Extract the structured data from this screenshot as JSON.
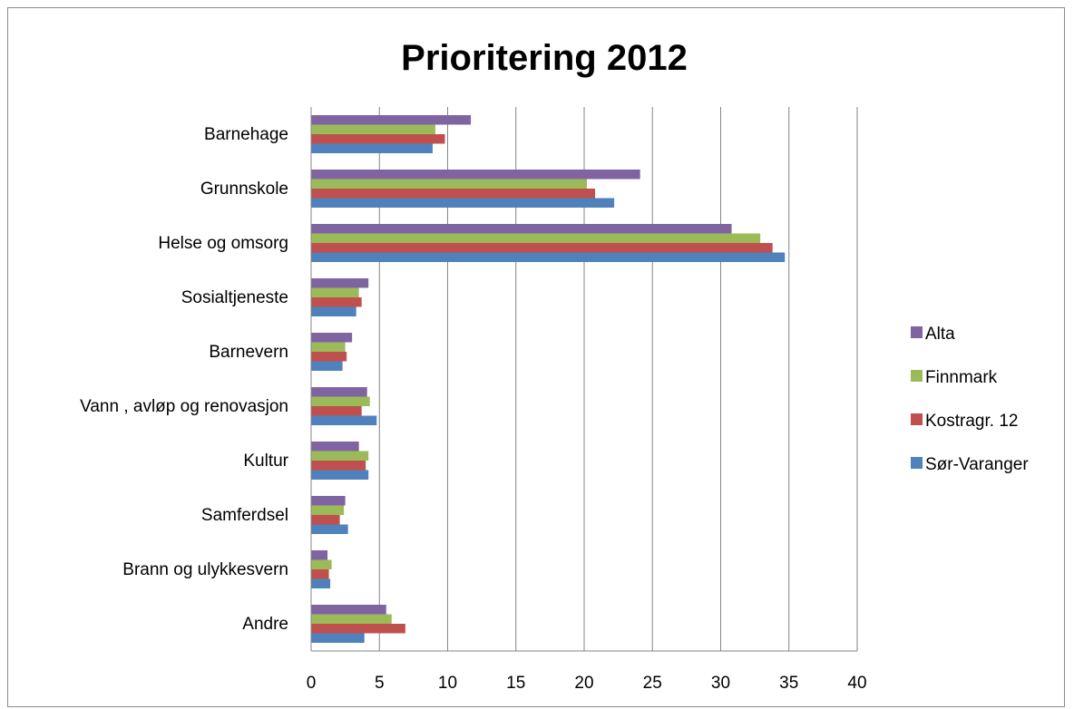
{
  "chart_data": {
    "type": "bar",
    "orientation": "horizontal",
    "title": "Prioritering 2012",
    "categories": [
      "Barnehage",
      "Grunnskole",
      "Helse og omsorg",
      "Sosialtjeneste",
      "Barnevern",
      "Vann , avløp og renovasjon",
      "Kultur",
      "Samferdsel",
      "Brann og ulykkesvern",
      "Andre"
    ],
    "series": [
      {
        "name": "Alta",
        "color": "#8064a2",
        "values": [
          11.7,
          24.1,
          30.8,
          4.2,
          3.0,
          4.1,
          3.5,
          2.5,
          1.2,
          5.5
        ]
      },
      {
        "name": "Finnmark",
        "color": "#9bbb59",
        "values": [
          9.1,
          20.2,
          32.9,
          3.5,
          2.5,
          4.3,
          4.2,
          2.4,
          1.5,
          5.9
        ]
      },
      {
        "name": "Kostragr. 12",
        "color": "#c0504d",
        "values": [
          9.8,
          20.8,
          33.8,
          3.7,
          2.6,
          3.7,
          4.0,
          2.1,
          1.3,
          6.9
        ]
      },
      {
        "name": "Sør-Varanger",
        "color": "#4f81bd",
        "values": [
          8.9,
          22.2,
          34.7,
          3.3,
          2.3,
          4.8,
          4.2,
          2.7,
          1.4,
          3.9
        ]
      }
    ],
    "xlim": [
      0,
      40
    ],
    "xticks": [
      "0",
      "5",
      "10",
      "15",
      "20",
      "25",
      "30",
      "35",
      "40"
    ],
    "grid": "vertical",
    "legend": "right"
  }
}
